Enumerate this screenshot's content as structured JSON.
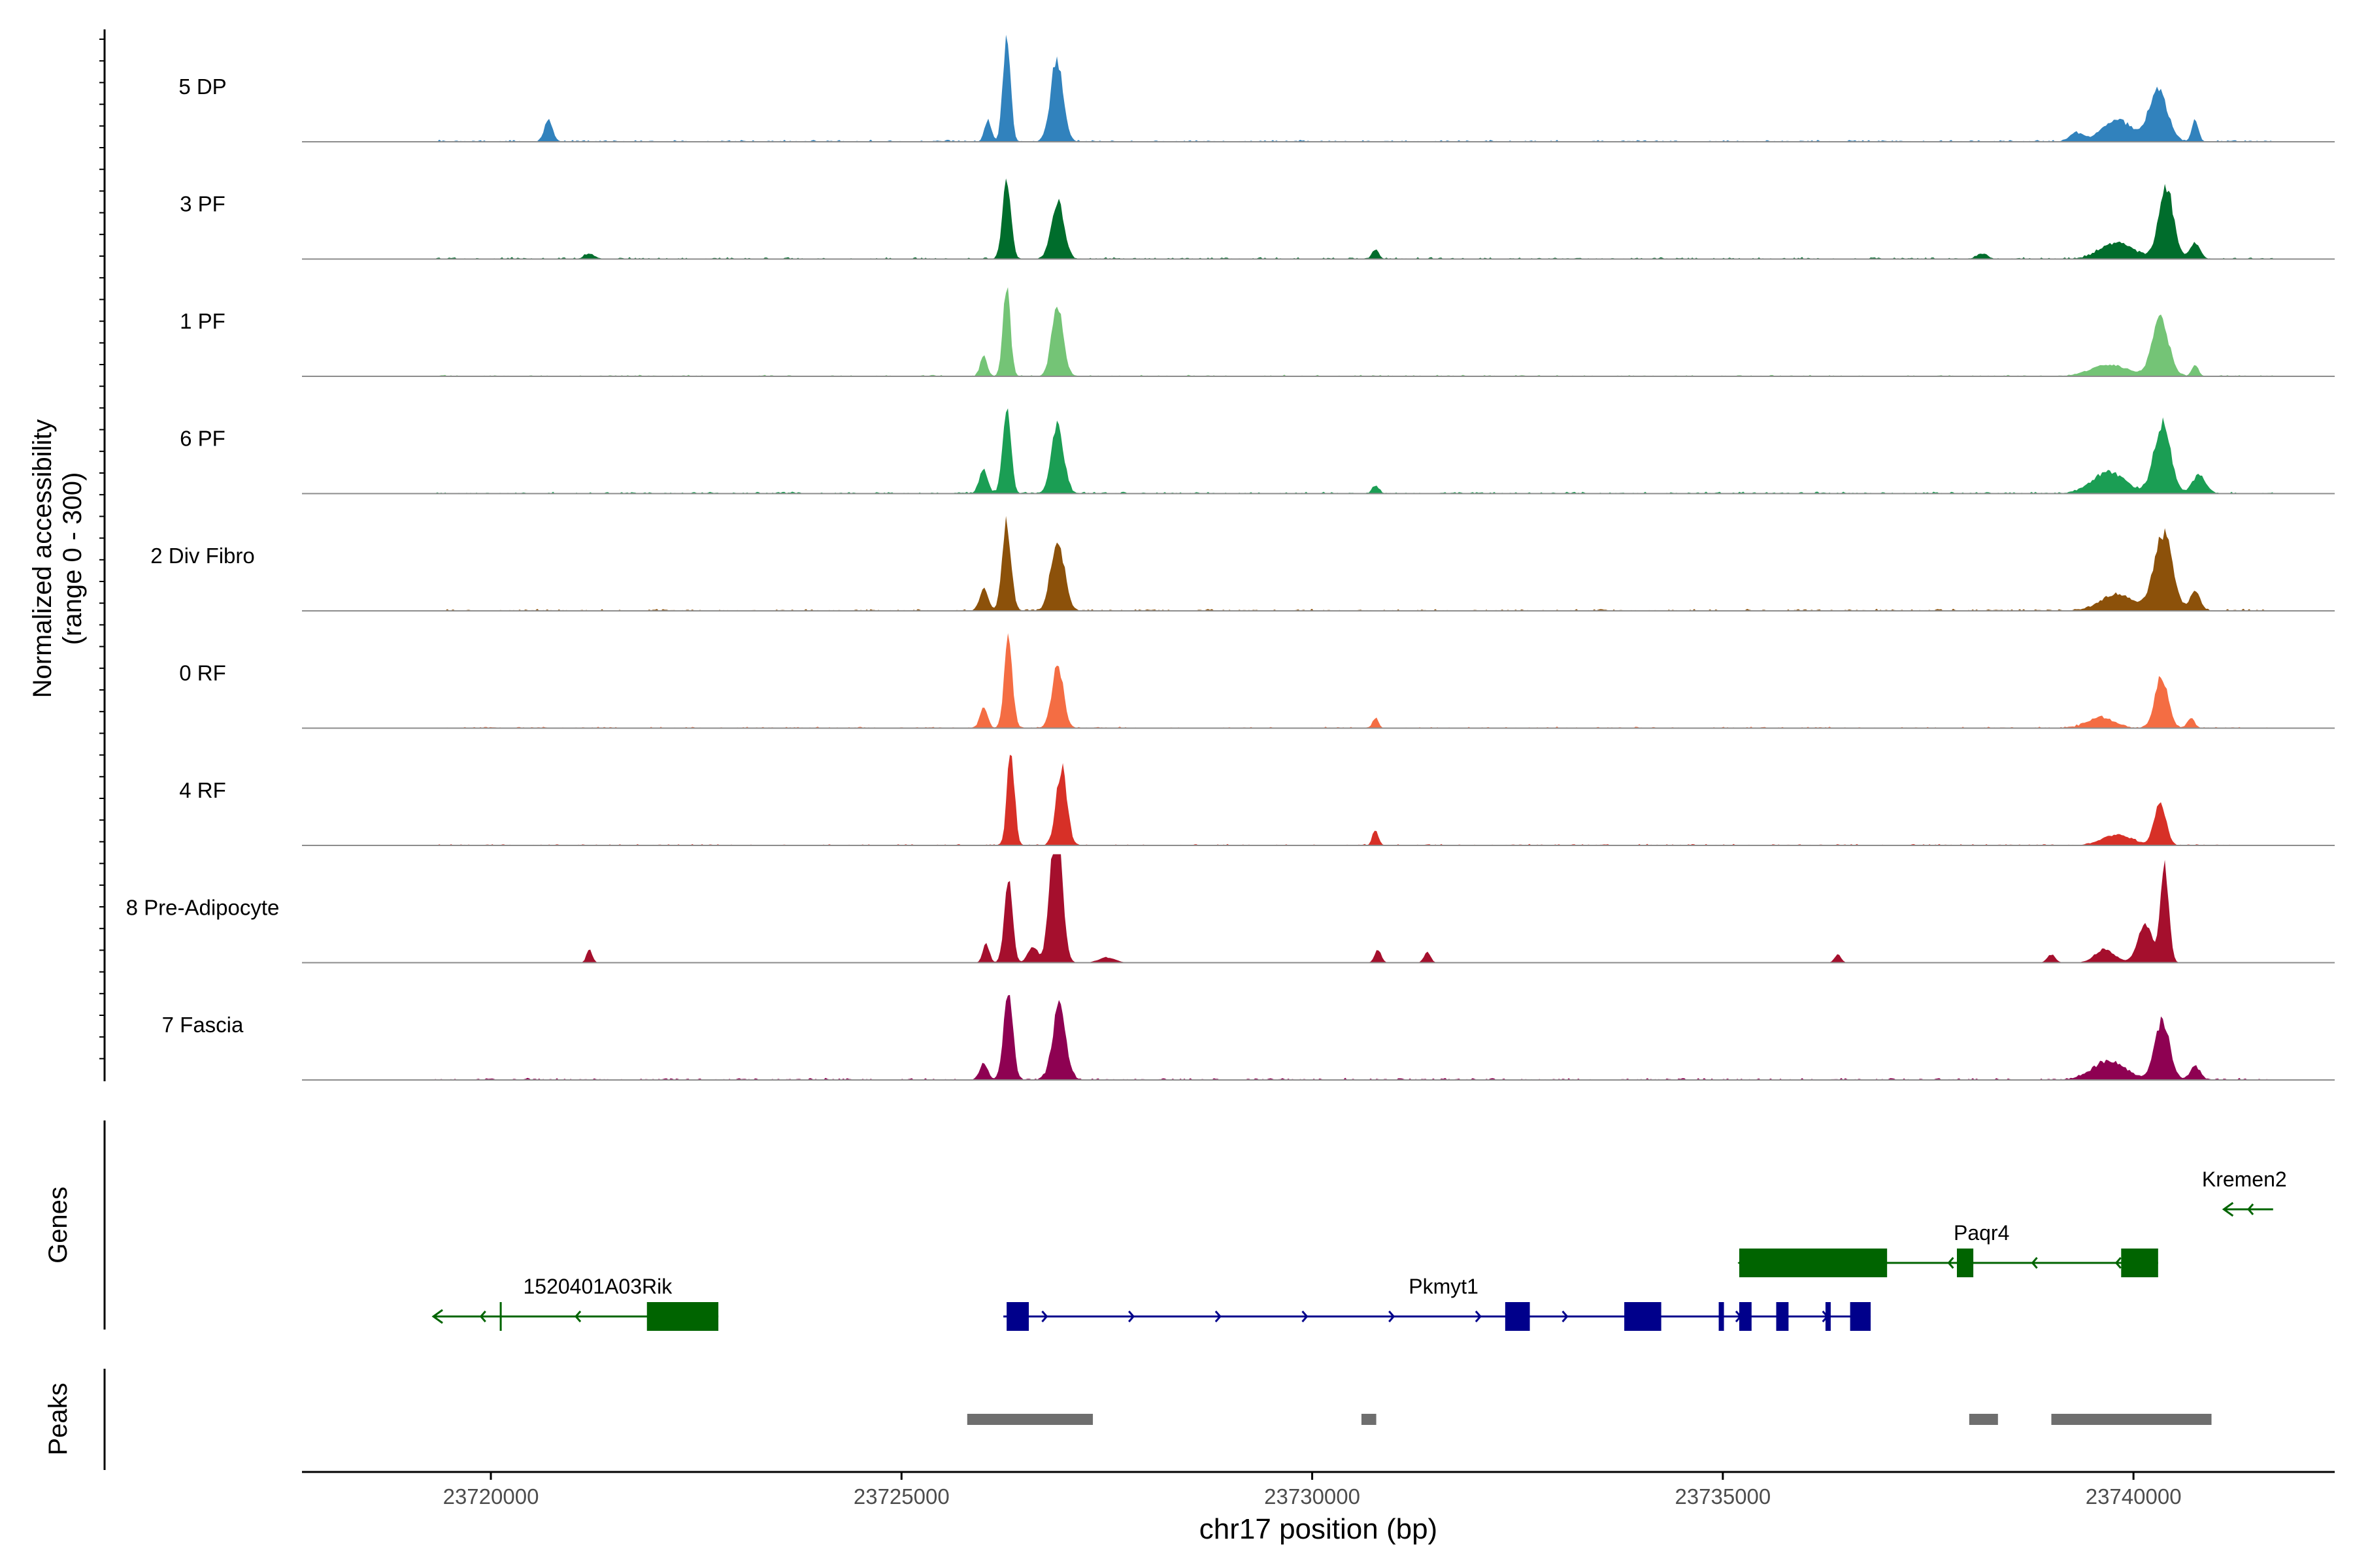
{
  "chart_data": {
    "type": "area",
    "chromosome": "chr17",
    "x_range": [
      23717700,
      23742450
    ],
    "x_ticks": [
      23720000,
      23725000,
      23730000,
      23735000,
      23740000
    ],
    "x_tick_labels": [
      "23720000",
      "23725000",
      "23730000",
      "23735000",
      "23740000"
    ],
    "xlabel": "chr17 position (bp)",
    "ylabel_line1": "Normalized accessibility",
    "ylabel_line2": "(range 0 - 300)",
    "y_range": [
      0,
      300
    ],
    "genes_label": "Genes",
    "peaks_label": "Peaks",
    "tracks": [
      {
        "name": "5 DP",
        "color": "#3182BD",
        "noise": 4,
        "peaks": [
          [
            23726280,
            45,
            200
          ],
          [
            23726890,
            75,
            150
          ],
          [
            23720700,
            50,
            40
          ],
          [
            23726050,
            40,
            40
          ],
          [
            23739800,
            180,
            40
          ],
          [
            23740300,
            110,
            100
          ],
          [
            23740750,
            40,
            40
          ],
          [
            23739300,
            80,
            16
          ]
        ]
      },
      {
        "name": "3 PF",
        "color": "#006D2C",
        "noise": 4,
        "peaks": [
          [
            23726280,
            50,
            155
          ],
          [
            23726900,
            75,
            110
          ],
          [
            23730770,
            40,
            18
          ],
          [
            23721200,
            60,
            10
          ],
          [
            23739800,
            200,
            30
          ],
          [
            23740400,
            90,
            130
          ],
          [
            23740750,
            60,
            30
          ],
          [
            23738160,
            60,
            10
          ]
        ]
      },
      {
        "name": "1 PF",
        "color": "#74C476",
        "noise": 3,
        "peaks": [
          [
            23726280,
            45,
            165
          ],
          [
            23726900,
            70,
            130
          ],
          [
            23726000,
            40,
            40
          ],
          [
            23739700,
            220,
            22
          ],
          [
            23740330,
            100,
            105
          ],
          [
            23740750,
            40,
            22
          ]
        ]
      },
      {
        "name": "6 PF",
        "color": "#1B9E54",
        "noise": 4,
        "peaks": [
          [
            23726280,
            50,
            165
          ],
          [
            23726900,
            75,
            125
          ],
          [
            23726000,
            50,
            45
          ],
          [
            23730770,
            40,
            15
          ],
          [
            23739700,
            200,
            40
          ],
          [
            23740350,
            100,
            130
          ],
          [
            23740800,
            80,
            35
          ]
        ]
      },
      {
        "name": "2 Div Fibro",
        "color": "#8C510A",
        "noise": 4,
        "peaks": [
          [
            23726280,
            55,
            160
          ],
          [
            23726900,
            80,
            135
          ],
          [
            23726000,
            50,
            40
          ],
          [
            23739800,
            200,
            30
          ],
          [
            23740360,
            110,
            145
          ],
          [
            23740750,
            60,
            35
          ]
        ]
      },
      {
        "name": "0 RF",
        "color": "#F46D43",
        "noise": 3,
        "peaks": [
          [
            23726300,
            50,
            160
          ],
          [
            23726900,
            70,
            115
          ],
          [
            23726000,
            45,
            40
          ],
          [
            23730770,
            35,
            18
          ],
          [
            23739600,
            160,
            20
          ],
          [
            23740340,
            80,
            95
          ],
          [
            23740700,
            40,
            20
          ]
        ]
      },
      {
        "name": "4 RF",
        "color": "#D73027",
        "noise": 3,
        "peaks": [
          [
            23726330,
            45,
            180
          ],
          [
            23726950,
            65,
            145
          ],
          [
            23730770,
            35,
            30
          ],
          [
            23739800,
            180,
            20
          ],
          [
            23740320,
            70,
            80
          ]
        ]
      },
      {
        "name": "8 Pre-Adipocyte",
        "color": "#A50F2D",
        "noise": 0,
        "peaks": [
          [
            23726880,
            70,
            280
          ],
          [
            23726300,
            50,
            150
          ],
          [
            23726030,
            40,
            35
          ],
          [
            23726600,
            60,
            30
          ],
          [
            23727500,
            100,
            10
          ],
          [
            23730800,
            40,
            25
          ],
          [
            23731400,
            40,
            20
          ],
          [
            23721200,
            35,
            25
          ],
          [
            23739650,
            120,
            25
          ],
          [
            23740140,
            90,
            70
          ],
          [
            23740380,
            50,
            180
          ],
          [
            23736400,
            40,
            15
          ],
          [
            23739000,
            50,
            15
          ]
        ]
      },
      {
        "name": "7 Fascia",
        "color": "#8E0152",
        "noise": 4,
        "peaks": [
          [
            23726300,
            55,
            165
          ],
          [
            23726920,
            80,
            135
          ],
          [
            23726000,
            50,
            30
          ],
          [
            23739700,
            200,
            35
          ],
          [
            23740350,
            90,
            110
          ],
          [
            23740750,
            60,
            25
          ]
        ]
      }
    ],
    "genes": [
      {
        "name": "1520401A03Rik",
        "strand": "-",
        "color": "#006400",
        "row": 0,
        "start": 23719300,
        "end": 23722770,
        "exons": [
          [
            23721900,
            23722770
          ]
        ],
        "tss_tick": 23720120,
        "label_pos": 23721300
      },
      {
        "name": "Pkmyt1",
        "strand": "+",
        "color": "#00008B",
        "row": 0,
        "start": 23726240,
        "end": 23736800,
        "exons": [
          [
            23726280,
            23726550
          ],
          [
            23732350,
            23732650
          ],
          [
            23733800,
            23734250
          ],
          [
            23734950,
            23735000
          ],
          [
            23735200,
            23735350
          ],
          [
            23735650,
            23735800
          ],
          [
            23736250,
            23736300
          ],
          [
            23736550,
            23736800
          ]
        ],
        "label_pos": 23731600
      },
      {
        "name": "Paqr4",
        "strand": "-",
        "color": "#006400",
        "row": 1,
        "start": 23735200,
        "end": 23740300,
        "exons": [
          [
            23735200,
            23737000
          ],
          [
            23737850,
            23738050
          ],
          [
            23739850,
            23740300
          ]
        ],
        "label_pos": 23738150
      },
      {
        "name": "Kremen2",
        "strand": "-",
        "color": "#006400",
        "row": 2,
        "start": 23741100,
        "end": 23741700,
        "exons": [],
        "label_pos": 23741350
      }
    ],
    "peaks": [
      [
        23725800,
        23727330
      ],
      [
        23730600,
        23730780
      ],
      [
        23738000,
        23738350
      ],
      [
        23739000,
        23740950
      ]
    ]
  }
}
